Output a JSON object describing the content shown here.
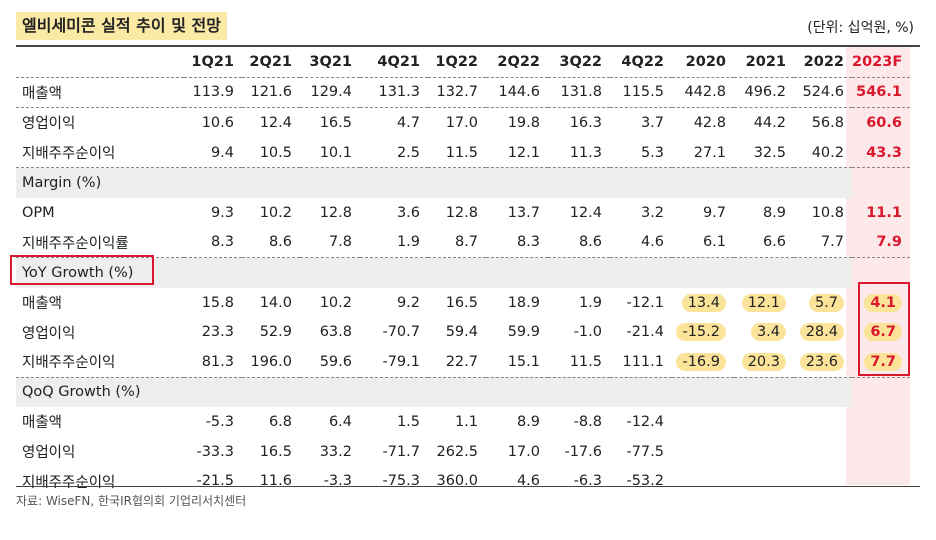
{
  "title": "엘비세미콘 실적 추이 및 전망",
  "unit": "(단위: 십억원, %)",
  "columns": [
    "1Q21",
    "2Q21",
    "3Q21",
    "4Q21",
    "1Q22",
    "2Q22",
    "3Q22",
    "4Q22",
    "2020",
    "2021",
    "2022",
    "2023F"
  ],
  "sections": [
    {
      "label": "",
      "rows": [
        {
          "label": "매출액",
          "values": [
            "113.9",
            "121.6",
            "129.4",
            "131.3",
            "132.7",
            "144.6",
            "131.8",
            "115.5",
            "442.8",
            "496.2",
            "524.6",
            "546.1"
          ]
        },
        {
          "label": "영업이익",
          "values": [
            "10.6",
            "12.4",
            "16.5",
            "4.7",
            "17.0",
            "19.8",
            "16.3",
            "3.7",
            "42.8",
            "44.2",
            "56.8",
            "60.6"
          ]
        },
        {
          "label": "지배주주순이익",
          "values": [
            "9.4",
            "10.5",
            "10.1",
            "2.5",
            "11.5",
            "12.1",
            "11.3",
            "5.3",
            "27.1",
            "32.5",
            "40.2",
            "43.3"
          ]
        }
      ]
    },
    {
      "label": "Margin (%)",
      "rows": [
        {
          "label": "OPM",
          "values": [
            "9.3",
            "10.2",
            "12.8",
            "3.6",
            "12.8",
            "13.7",
            "12.4",
            "3.2",
            "9.7",
            "8.9",
            "10.8",
            "11.1"
          ]
        },
        {
          "label": "지배주주순이익률",
          "values": [
            "8.3",
            "8.6",
            "7.8",
            "1.9",
            "8.7",
            "8.3",
            "8.6",
            "4.6",
            "6.1",
            "6.6",
            "7.7",
            "7.9"
          ]
        }
      ]
    },
    {
      "label": "YoY Growth (%)",
      "rows": [
        {
          "label": "매출액",
          "values": [
            "15.8",
            "14.0",
            "10.2",
            "9.2",
            "16.5",
            "18.9",
            "1.9",
            "-12.1",
            "13.4",
            "12.1",
            "5.7",
            "4.1"
          ]
        },
        {
          "label": "영업이익",
          "values": [
            "23.3",
            "52.9",
            "63.8",
            "-70.7",
            "59.4",
            "59.9",
            "-1.0",
            "-21.4",
            "-15.2",
            "3.4",
            "28.4",
            "6.7"
          ]
        },
        {
          "label": "지배주주순이익",
          "values": [
            "81.3",
            "196.0",
            "59.6",
            "-79.1",
            "22.7",
            "15.1",
            "11.5",
            "111.1",
            "-16.9",
            "20.3",
            "23.6",
            "7.7"
          ]
        }
      ]
    },
    {
      "label": "QoQ Growth (%)",
      "rows": [
        {
          "label": "매출액",
          "values": [
            "-5.3",
            "6.8",
            "6.4",
            "1.5",
            "1.1",
            "8.9",
            "-8.8",
            "-12.4",
            "",
            "",
            "",
            ""
          ]
        },
        {
          "label": "영업이익",
          "values": [
            "-33.3",
            "16.5",
            "33.2",
            "-71.7",
            "262.5",
            "17.0",
            "-17.6",
            "-77.5",
            "",
            "",
            "",
            ""
          ]
        },
        {
          "label": "지배주주순이익",
          "values": [
            "-21.5",
            "11.6",
            "-3.3",
            "-75.3",
            "360.0",
            "4.6",
            "-6.3",
            "-53.2",
            "",
            "",
            "",
            ""
          ]
        }
      ]
    }
  ],
  "source": "자료: WiseFN, 한국IR협의회 기업리서치센터",
  "colors": {
    "forecast": "#d9182d",
    "highlight": "#fbe49a",
    "forecast_bg": "#fde8ea"
  }
}
